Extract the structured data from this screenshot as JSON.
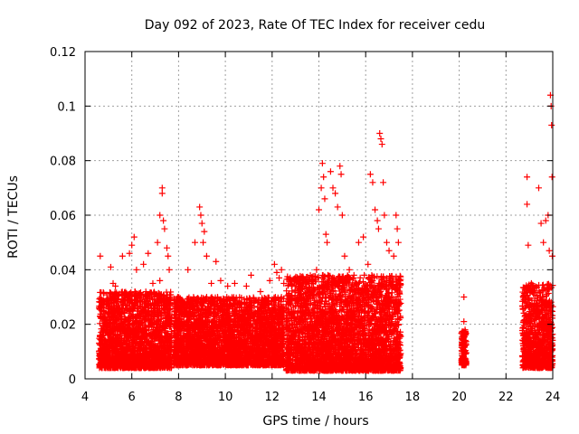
{
  "chart_data": {
    "type": "scatter",
    "title": "Day 092 of 2023, Rate Of TEC Index for receiver cedu",
    "xlabel": "GPS time / hours",
    "ylabel": "ROTI / TECUs",
    "xlim": [
      4,
      24
    ],
    "ylim": [
      0,
      0.12
    ],
    "xticks": [
      4,
      6,
      8,
      10,
      12,
      14,
      16,
      18,
      20,
      22,
      24
    ],
    "yticks": [
      0,
      0.02,
      0.04,
      0.06,
      0.08,
      0.1,
      0.12
    ],
    "xtick_labels": [
      "4",
      "6",
      "8",
      "10",
      "12",
      "14",
      "16",
      "18",
      "20",
      "22",
      "24"
    ],
    "ytick_labels": [
      "0",
      "0.02",
      "0.04",
      "0.06",
      "0.08",
      "0.1",
      "0.12"
    ],
    "grid": true,
    "marker": "+",
    "color": "#ff0000",
    "series": [
      {
        "name": "ROTI",
        "segments": [
          {
            "x_start": 4.6,
            "x_end": 7.7,
            "y_min": 0.004,
            "y_max": 0.032
          },
          {
            "x_start": 7.8,
            "x_end": 12.5,
            "y_min": 0.005,
            "y_max": 0.03
          },
          {
            "x_start": 12.6,
            "x_end": 17.5,
            "y_min": 0.003,
            "y_max": 0.038
          },
          {
            "x_start": 20.1,
            "x_end": 20.3,
            "y_min": 0.005,
            "y_max": 0.018
          },
          {
            "x_start": 22.7,
            "x_end": 24.0,
            "y_min": 0.004,
            "y_max": 0.035
          }
        ],
        "points": [
          [
            4.65,
            0.045
          ],
          [
            4.7,
            0.027
          ],
          [
            5.1,
            0.041
          ],
          [
            5.2,
            0.035
          ],
          [
            5.3,
            0.034
          ],
          [
            5.6,
            0.045
          ],
          [
            5.9,
            0.046
          ],
          [
            6.0,
            0.049
          ],
          [
            6.1,
            0.052
          ],
          [
            6.2,
            0.04
          ],
          [
            6.5,
            0.042
          ],
          [
            6.7,
            0.046
          ],
          [
            6.9,
            0.035
          ],
          [
            7.1,
            0.05
          ],
          [
            7.2,
            0.06
          ],
          [
            7.3,
            0.07
          ],
          [
            7.3,
            0.068
          ],
          [
            7.35,
            0.058
          ],
          [
            7.4,
            0.055
          ],
          [
            7.5,
            0.048
          ],
          [
            7.55,
            0.045
          ],
          [
            7.6,
            0.04
          ],
          [
            7.2,
            0.036
          ],
          [
            8.4,
            0.04
          ],
          [
            8.7,
            0.05
          ],
          [
            8.9,
            0.063
          ],
          [
            8.95,
            0.06
          ],
          [
            9.0,
            0.057
          ],
          [
            9.05,
            0.05
          ],
          [
            9.1,
            0.054
          ],
          [
            9.2,
            0.045
          ],
          [
            9.4,
            0.035
          ],
          [
            9.6,
            0.043
          ],
          [
            9.8,
            0.036
          ],
          [
            10.1,
            0.034
          ],
          [
            10.4,
            0.035
          ],
          [
            10.9,
            0.034
          ],
          [
            11.1,
            0.038
          ],
          [
            11.5,
            0.032
          ],
          [
            11.9,
            0.036
          ],
          [
            12.1,
            0.042
          ],
          [
            12.2,
            0.039
          ],
          [
            12.3,
            0.037
          ],
          [
            12.4,
            0.04
          ],
          [
            12.5,
            0.035
          ],
          [
            13.3,
            0.033
          ],
          [
            13.7,
            0.035
          ],
          [
            13.9,
            0.04
          ],
          [
            14.0,
            0.062
          ],
          [
            14.1,
            0.07
          ],
          [
            14.15,
            0.079
          ],
          [
            14.2,
            0.074
          ],
          [
            14.25,
            0.066
          ],
          [
            14.3,
            0.053
          ],
          [
            14.35,
            0.05
          ],
          [
            14.5,
            0.076
          ],
          [
            14.6,
            0.07
          ],
          [
            14.7,
            0.068
          ],
          [
            14.8,
            0.063
          ],
          [
            14.9,
            0.078
          ],
          [
            14.95,
            0.075
          ],
          [
            15.0,
            0.06
          ],
          [
            15.1,
            0.045
          ],
          [
            15.3,
            0.04
          ],
          [
            15.5,
            0.038
          ],
          [
            15.7,
            0.05
          ],
          [
            15.9,
            0.052
          ],
          [
            16.1,
            0.042
          ],
          [
            16.2,
            0.075
          ],
          [
            16.3,
            0.072
          ],
          [
            16.4,
            0.062
          ],
          [
            16.5,
            0.058
          ],
          [
            16.55,
            0.055
          ],
          [
            16.6,
            0.09
          ],
          [
            16.65,
            0.088
          ],
          [
            16.7,
            0.086
          ],
          [
            16.75,
            0.072
          ],
          [
            16.8,
            0.06
          ],
          [
            16.9,
            0.05
          ],
          [
            17.0,
            0.047
          ],
          [
            17.2,
            0.045
          ],
          [
            17.3,
            0.06
          ],
          [
            17.35,
            0.055
          ],
          [
            17.4,
            0.05
          ],
          [
            20.2,
            0.03
          ],
          [
            20.2,
            0.021
          ],
          [
            20.25,
            0.018
          ],
          [
            22.9,
            0.074
          ],
          [
            22.9,
            0.064
          ],
          [
            22.95,
            0.049
          ],
          [
            23.4,
            0.07
          ],
          [
            23.5,
            0.057
          ],
          [
            23.6,
            0.05
          ],
          [
            23.7,
            0.058
          ],
          [
            23.8,
            0.06
          ],
          [
            23.85,
            0.047
          ],
          [
            23.9,
            0.104
          ],
          [
            23.93,
            0.1
          ],
          [
            23.95,
            0.093
          ],
          [
            23.97,
            0.074
          ],
          [
            23.98,
            0.045
          ]
        ]
      }
    ]
  }
}
